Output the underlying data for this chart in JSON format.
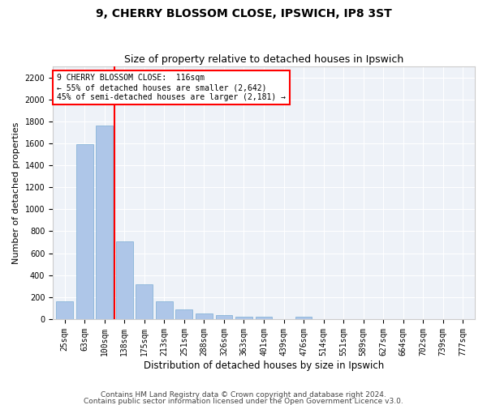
{
  "title": "9, CHERRY BLOSSOM CLOSE, IPSWICH, IP8 3ST",
  "subtitle": "Size of property relative to detached houses in Ipswich",
  "xlabel": "Distribution of detached houses by size in Ipswich",
  "ylabel": "Number of detached properties",
  "categories": [
    "25sqm",
    "63sqm",
    "100sqm",
    "138sqm",
    "175sqm",
    "213sqm",
    "251sqm",
    "288sqm",
    "326sqm",
    "363sqm",
    "401sqm",
    "439sqm",
    "476sqm",
    "514sqm",
    "551sqm",
    "589sqm",
    "627sqm",
    "664sqm",
    "702sqm",
    "739sqm",
    "777sqm"
  ],
  "values": [
    160,
    1590,
    1760,
    710,
    315,
    160,
    90,
    55,
    35,
    25,
    20,
    0,
    20,
    0,
    0,
    0,
    0,
    0,
    0,
    0,
    0
  ],
  "bar_color": "#aec6e8",
  "bar_edge_color": "#7badd4",
  "bar_width": 0.85,
  "vline_x": 2.5,
  "vline_color": "red",
  "annotation_line1": "9 CHERRY BLOSSOM CLOSE:  116sqm",
  "annotation_line2": "← 55% of detached houses are smaller (2,642)",
  "annotation_line3": "45% of semi-detached houses are larger (2,181) →",
  "annotation_box_color": "red",
  "ylim": [
    0,
    2300
  ],
  "yticks": [
    0,
    200,
    400,
    600,
    800,
    1000,
    1200,
    1400,
    1600,
    1800,
    2000,
    2200
  ],
  "background_color": "#eef2f8",
  "footer_line1": "Contains HM Land Registry data © Crown copyright and database right 2024.",
  "footer_line2": "Contains public sector information licensed under the Open Government Licence v3.0.",
  "title_fontsize": 10,
  "subtitle_fontsize": 9,
  "xlabel_fontsize": 8.5,
  "ylabel_fontsize": 8,
  "tick_fontsize": 7,
  "footer_fontsize": 6.5
}
